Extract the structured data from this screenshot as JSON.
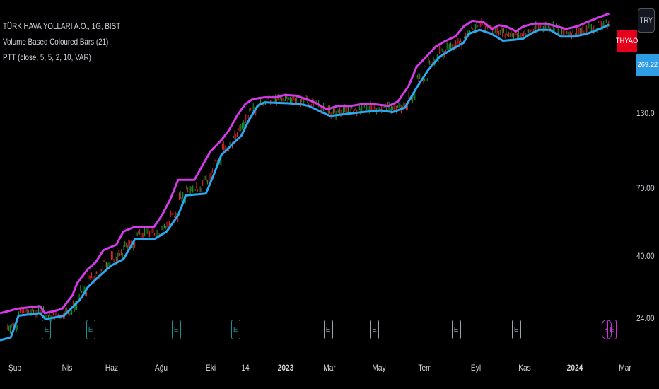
{
  "legend": {
    "symbol": "TÜRK HAVA YOLLARI A.O., 1G, BIST",
    "indicator1": "Volume Based Coloured Bars (21)",
    "indicator2": "PTT (close, 5, 5, 2, 10, VAR)"
  },
  "price_scale": {
    "currency": "TRY",
    "symbol_badge": "THYAO",
    "last_price": "269.22"
  },
  "events": {
    "earnings_label": "E",
    "dividend_icon": "lightning-icon"
  },
  "colors": {
    "background": "#000000",
    "upper_line": "#d33be8",
    "lower_line": "#29a9f0",
    "bar_up": "#1fa12f",
    "bar_down": "#e0262b",
    "symbol_badge": "#e4001b",
    "price_badge": "#2f9de6"
  },
  "chart_data": {
    "type": "line",
    "scale": "log",
    "ylim": [
      19,
      330
    ],
    "y_ticks": [
      "130.0",
      "70.00",
      "40.00",
      "24.00"
    ],
    "x_ticks": [
      {
        "label": "Şub",
        "bold": false
      },
      {
        "label": "Nis",
        "bold": false
      },
      {
        "label": "Haz",
        "bold": false
      },
      {
        "label": "Ağu",
        "bold": false
      },
      {
        "label": "Eki",
        "bold": false
      },
      {
        "label": "14",
        "bold": false
      },
      {
        "label": "2023",
        "bold": true
      },
      {
        "label": "Mar",
        "bold": false
      },
      {
        "label": "May",
        "bold": false
      },
      {
        "label": "Tem",
        "bold": false
      },
      {
        "label": "Eyl",
        "bold": false
      },
      {
        "label": "Kas",
        "bold": false
      },
      {
        "label": "2024",
        "bold": true
      },
      {
        "label": "Mar",
        "bold": false
      }
    ],
    "x_range": [
      "2022-01-01",
      "2024-03-05"
    ],
    "series": [
      {
        "values": [
          [
            "2022-01-01",
            25
          ],
          [
            "2022-01-25",
            26
          ],
          [
            "2022-02-22",
            26.5
          ],
          [
            "2022-02-28",
            25
          ],
          [
            "2022-03-14",
            25.5
          ],
          [
            "2022-03-23",
            26
          ],
          [
            "2022-04-05",
            29
          ],
          [
            "2022-04-11",
            32
          ],
          [
            "2022-04-25",
            36
          ],
          [
            "2022-05-05",
            38
          ],
          [
            "2022-05-15",
            42
          ],
          [
            "2022-06-01",
            44
          ],
          [
            "2022-06-10",
            49
          ],
          [
            "2022-06-25",
            51
          ],
          [
            "2022-07-20",
            51
          ],
          [
            "2022-07-30",
            56
          ],
          [
            "2022-08-10",
            64
          ],
          [
            "2022-08-20",
            75
          ],
          [
            "2022-09-10",
            75
          ],
          [
            "2022-09-20",
            84
          ],
          [
            "2022-10-01",
            95
          ],
          [
            "2022-10-15",
            104
          ],
          [
            "2022-10-25",
            113
          ],
          [
            "2022-11-05",
            128
          ],
          [
            "2022-11-15",
            140
          ],
          [
            "2022-11-25",
            146
          ],
          [
            "2022-12-10",
            148
          ],
          [
            "2022-12-25",
            148
          ],
          [
            "2023-01-05",
            151
          ],
          [
            "2023-01-20",
            150
          ],
          [
            "2023-02-05",
            145
          ],
          [
            "2023-02-15",
            141
          ],
          [
            "2023-03-01",
            134
          ],
          [
            "2023-03-15",
            138
          ],
          [
            "2023-04-01",
            138
          ],
          [
            "2023-04-15",
            140
          ],
          [
            "2023-05-01",
            140
          ],
          [
            "2023-05-20",
            138
          ],
          [
            "2023-06-01",
            143
          ],
          [
            "2023-06-15",
            163
          ],
          [
            "2023-06-25",
            190
          ],
          [
            "2023-07-10",
            210
          ],
          [
            "2023-07-20",
            225
          ],
          [
            "2023-08-01",
            235
          ],
          [
            "2023-08-15",
            245
          ],
          [
            "2023-08-25",
            265
          ],
          [
            "2023-09-05",
            278
          ],
          [
            "2023-09-20",
            275
          ],
          [
            "2023-10-01",
            260
          ],
          [
            "2023-10-10",
            268
          ],
          [
            "2023-10-20",
            265
          ],
          [
            "2023-11-01",
            255
          ],
          [
            "2023-11-10",
            265
          ],
          [
            "2023-11-25",
            272
          ],
          [
            "2023-12-10",
            272
          ],
          [
            "2023-12-25",
            265
          ],
          [
            "2024-01-05",
            260
          ],
          [
            "2024-01-20",
            266
          ],
          [
            "2024-02-01",
            275
          ],
          [
            "2024-02-15",
            285
          ],
          [
            "2024-03-01",
            295
          ]
        ]
      },
      {
        "values": [
          [
            "2022-01-01",
            20
          ],
          [
            "2022-01-15",
            20.5
          ],
          [
            "2022-01-25",
            24.5
          ],
          [
            "2022-02-22",
            25
          ],
          [
            "2022-03-01",
            23.8
          ],
          [
            "2022-03-25",
            24.5
          ],
          [
            "2022-04-15",
            28
          ],
          [
            "2022-04-25",
            31
          ],
          [
            "2022-05-10",
            34
          ],
          [
            "2022-05-25",
            37
          ],
          [
            "2022-06-10",
            39
          ],
          [
            "2022-06-25",
            46
          ],
          [
            "2022-07-20",
            46
          ],
          [
            "2022-08-05",
            49
          ],
          [
            "2022-08-20",
            56
          ],
          [
            "2022-08-30",
            66
          ],
          [
            "2022-09-25",
            67
          ],
          [
            "2022-10-05",
            78
          ],
          [
            "2022-10-15",
            92
          ],
          [
            "2022-10-30",
            101
          ],
          [
            "2022-11-10",
            108
          ],
          [
            "2022-11-20",
            123
          ],
          [
            "2022-12-01",
            138
          ],
          [
            "2022-12-10",
            142
          ],
          [
            "2023-01-10",
            141
          ],
          [
            "2023-01-25",
            140
          ],
          [
            "2023-02-05",
            138
          ],
          [
            "2023-02-20",
            132
          ],
          [
            "2023-03-05",
            127
          ],
          [
            "2023-03-25",
            129
          ],
          [
            "2023-04-15",
            131
          ],
          [
            "2023-05-10",
            133
          ],
          [
            "2023-05-25",
            131
          ],
          [
            "2023-06-10",
            136
          ],
          [
            "2023-06-25",
            160
          ],
          [
            "2023-07-10",
            185
          ],
          [
            "2023-07-25",
            207
          ],
          [
            "2023-08-10",
            220
          ],
          [
            "2023-08-25",
            232
          ],
          [
            "2023-09-01",
            250
          ],
          [
            "2023-09-15",
            258
          ],
          [
            "2023-09-30",
            250
          ],
          [
            "2023-10-15",
            236
          ],
          [
            "2023-10-30",
            238
          ],
          [
            "2023-11-10",
            240
          ],
          [
            "2023-11-20",
            250
          ],
          [
            "2023-12-01",
            258
          ],
          [
            "2023-12-15",
            258
          ],
          [
            "2023-12-30",
            244
          ],
          [
            "2024-01-15",
            244
          ],
          [
            "2024-02-01",
            250
          ],
          [
            "2024-02-15",
            258
          ],
          [
            "2024-03-01",
            269.22
          ]
        ]
      }
    ],
    "earnings_dates": [
      "2022-03-02",
      "2022-04-28",
      "2022-08-17",
      "2022-11-02",
      "2023-03-02",
      "2023-05-01",
      "2023-08-15",
      "2023-11-01",
      "2024-03-04"
    ],
    "dividend_dates": [
      "2024-02-27"
    ]
  }
}
